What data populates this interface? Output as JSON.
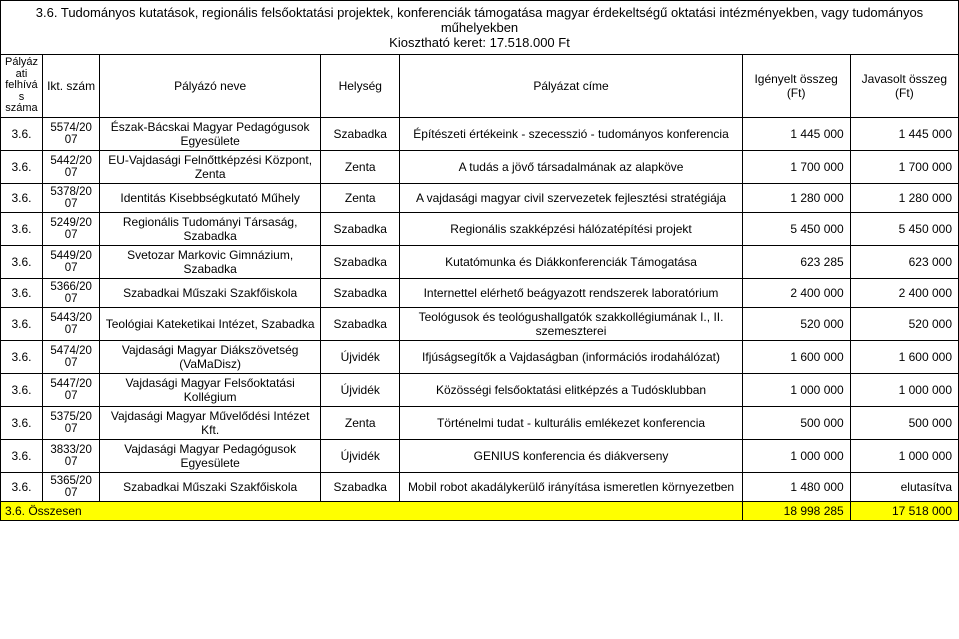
{
  "heading": {
    "line1": "3.6. Tudományos kutatások, regionális felsőoktatási projektek, konferenciák támogatása magyar érdekeltségű oktatási intézményekben, vagy tudományos",
    "line2": "műhelyekben",
    "line3": "Kiosztható keret: 17.518.000 Ft"
  },
  "headers": {
    "c0": "Pályáz\nati\nfelhívá\ns\nszáma",
    "c1": "Ikt. szám",
    "c2": "Pályázó neve",
    "c3": "Helység",
    "c4": "Pályázat címe",
    "c5": "Igényelt összeg (Ft)",
    "c6": "Javasolt összeg (Ft)"
  },
  "rows": [
    {
      "a": "3.6.",
      "b": "5574/20\n07",
      "c": "Észak-Bácskai Magyar Pedagógusok Egyesülete",
      "d": "Szabadka",
      "e": "Építészeti értékeink - szecesszió - tudományos konferencia",
      "f": "1 445 000",
      "g": "1 445 000"
    },
    {
      "a": "3.6.",
      "b": "5442/20\n07",
      "c": "EU-Vajdasági Felnőttképzési Központ, Zenta",
      "d": "Zenta",
      "e": "A tudás a jövő társadalmának az alapköve",
      "f": "1 700 000",
      "g": "1 700 000"
    },
    {
      "a": "3.6.",
      "b": "5378/20\n07",
      "c": "Identitás Kisebbségkutató Műhely",
      "d": "Zenta",
      "e": "A vajdasági magyar civil szervezetek fejlesztési stratégiája",
      "f": "1 280 000",
      "g": "1 280 000"
    },
    {
      "a": "3.6.",
      "b": "5249/20\n07",
      "c": "Regionális Tudományi Társaság, Szabadka",
      "d": "Szabadka",
      "e": "Regionális szakképzési hálózatépítési projekt",
      "f": "5 450 000",
      "g": "5 450 000"
    },
    {
      "a": "3.6.",
      "b": "5449/20\n07",
      "c": "Svetozar Markovic Gimnázium, Szabadka",
      "d": "Szabadka",
      "e": "Kutatómunka és Diákkonferenciák Támogatása",
      "f": "623 285",
      "g": "623 000"
    },
    {
      "a": "3.6.",
      "b": "5366/20\n07",
      "c": "Szabadkai Műszaki Szakfőiskola",
      "d": "Szabadka",
      "e": "Internettel elérhető beágyazott rendszerek laboratórium",
      "f": "2 400 000",
      "g": "2 400 000"
    },
    {
      "a": "3.6.",
      "b": "5443/20\n07",
      "c": "Teológiai Kateketikai Intézet, Szabadka",
      "d": "Szabadka",
      "e": "Teológusok és teológushallgatók szakkollégiumának I., II. szemeszterei",
      "f": "520 000",
      "g": "520 000"
    },
    {
      "a": "3.6.",
      "b": "5474/20\n07",
      "c": "Vajdasági Magyar Diákszövetség (VaMaDisz)",
      "d": "Újvidék",
      "e": "Ifjúságsegítők a Vajdaságban (információs irodahálózat)",
      "f": "1 600 000",
      "g": "1 600 000"
    },
    {
      "a": "3.6.",
      "b": "5447/20\n07",
      "c": "Vajdasági Magyar Felsőoktatási Kollégium",
      "d": "Újvidék",
      "e": "Közösségi felsőoktatási elitképzés a Tudósklubban",
      "f": "1 000 000",
      "g": "1 000 000"
    },
    {
      "a": "3.6.",
      "b": "5375/20\n07",
      "c": "Vajdasági Magyar Művelődési Intézet Kft.",
      "d": "Zenta",
      "e": "Történelmi tudat - kulturális emlékezet konferencia",
      "f": "500 000",
      "g": "500 000"
    },
    {
      "a": "3.6.",
      "b": "3833/20\n07",
      "c": "Vajdasági Magyar Pedagógusok Egyesülete",
      "d": "Újvidék",
      "e": "GENIUS konferencia és diákverseny",
      "f": "1 000 000",
      "g": "1 000 000"
    },
    {
      "a": "3.6.",
      "b": "5365/20\n07",
      "c": "Szabadkai Műszaki Szakfőiskola",
      "d": "Szabadka",
      "e": "Mobil robot akadálykerülő irányítása ismeretlen környezetben",
      "f": "1 480 000",
      "g": "elutasítva"
    }
  ],
  "total": {
    "label": "3.6. Összesen",
    "f": "18 998 285",
    "g": "17 518 000"
  },
  "colors": {
    "highlight": "#ffff00",
    "border": "#000000",
    "text": "#000000",
    "bg": "#ffffff"
  }
}
